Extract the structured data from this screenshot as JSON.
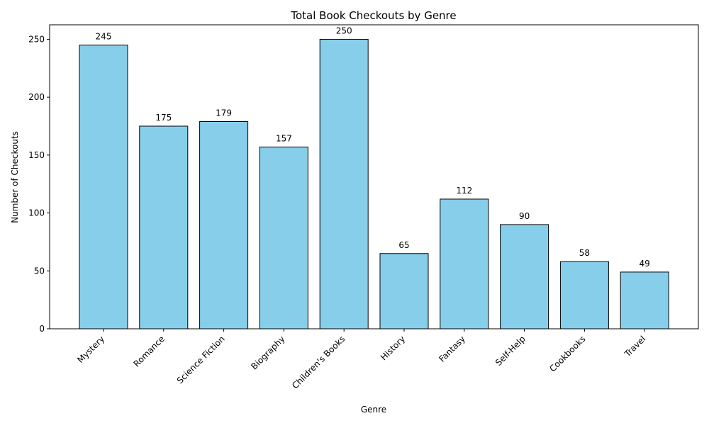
{
  "colors": {
    "bar_fill": "#87ceeb",
    "bar_stroke": "#000000",
    "axis": "#000000",
    "background": "#ffffff"
  },
  "chart_data": {
    "type": "bar",
    "title": "Total Book Checkouts by Genre",
    "xlabel": "Genre",
    "ylabel": "Number of Checkouts",
    "categories": [
      "Mystery",
      "Romance",
      "Science Fiction",
      "Biography",
      "Children's Books",
      "History",
      "Fantasy",
      "Self-Help",
      "Cookbooks",
      "Travel"
    ],
    "values": [
      245,
      175,
      179,
      157,
      250,
      65,
      112,
      90,
      58,
      49
    ],
    "ylim": [
      0,
      262.5
    ],
    "yticks": [
      0,
      50,
      100,
      150,
      200,
      250
    ],
    "grid": false,
    "legend": "none",
    "data_labels": true
  }
}
